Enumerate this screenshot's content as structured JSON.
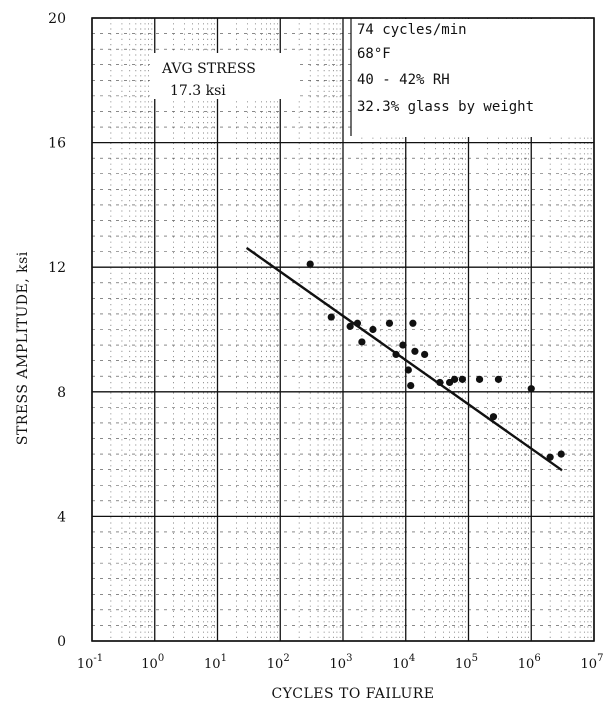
{
  "chart_data": {
    "type": "scatter",
    "title": "",
    "xlabel": "CYCLES TO FAILURE",
    "ylabel": "STRESS AMPLITUDE, ksi",
    "x_scale": "log",
    "xlim": [
      0.1,
      10000000
    ],
    "ylim": [
      0,
      20
    ],
    "grid": true,
    "x_ticks": [
      {
        "value": 0.1,
        "base": "10",
        "exp": "-1"
      },
      {
        "value": 1,
        "base": "10",
        "exp": "0"
      },
      {
        "value": 10,
        "base": "10",
        "exp": "1"
      },
      {
        "value": 100,
        "base": "10",
        "exp": "2"
      },
      {
        "value": 1000,
        "base": "10",
        "exp": "3"
      },
      {
        "value": 10000,
        "base": "10",
        "exp": "4"
      },
      {
        "value": 100000,
        "base": "10",
        "exp": "5"
      },
      {
        "value": 1000000,
        "base": "10",
        "exp": "6"
      },
      {
        "value": 10000000,
        "base": "10",
        "exp": "7"
      }
    ],
    "y_ticks": [
      {
        "value": 0,
        "label": "0"
      },
      {
        "value": 4,
        "label": "4"
      },
      {
        "value": 8,
        "label": "8"
      },
      {
        "value": 12,
        "label": "12"
      },
      {
        "value": 16,
        "label": "16"
      },
      {
        "value": 20,
        "label": "20"
      }
    ],
    "series": [
      {
        "type": "scatter",
        "points": [
          {
            "x": 300,
            "y": 12.1
          },
          {
            "x": 650,
            "y": 10.4
          },
          {
            "x": 1300,
            "y": 10.1
          },
          {
            "x": 1700,
            "y": 10.2
          },
          {
            "x": 2000,
            "y": 9.6
          },
          {
            "x": 3000,
            "y": 10.0
          },
          {
            "x": 5500,
            "y": 10.2
          },
          {
            "x": 7000,
            "y": 9.2
          },
          {
            "x": 9000,
            "y": 9.5
          },
          {
            "x": 11000,
            "y": 8.7
          },
          {
            "x": 12000,
            "y": 8.2
          },
          {
            "x": 13000,
            "y": 10.2
          },
          {
            "x": 14000,
            "y": 9.3
          },
          {
            "x": 20000,
            "y": 9.2
          },
          {
            "x": 35000,
            "y": 8.3
          },
          {
            "x": 50000,
            "y": 8.3
          },
          {
            "x": 60000,
            "y": 8.4
          },
          {
            "x": 80000,
            "y": 8.4
          },
          {
            "x": 150000,
            "y": 8.4
          },
          {
            "x": 250000,
            "y": 7.2
          },
          {
            "x": 300000,
            "y": 8.4
          },
          {
            "x": 1000000,
            "y": 8.1
          },
          {
            "x": 2000000,
            "y": 5.9
          },
          {
            "x": 3000000,
            "y": 6.0
          }
        ]
      },
      {
        "type": "line",
        "points": [
          {
            "x": 30,
            "y": 12.6
          },
          {
            "x": 3000000,
            "y": 5.5
          }
        ]
      }
    ],
    "annotations": {
      "avg_stress_label": "AVG STRESS",
      "avg_stress_value": "17.3 ksi",
      "conditions": [
        "74 cycles/min",
        "68°F",
        "40 - 42% RH",
        "32.3% glass by weight"
      ]
    }
  }
}
